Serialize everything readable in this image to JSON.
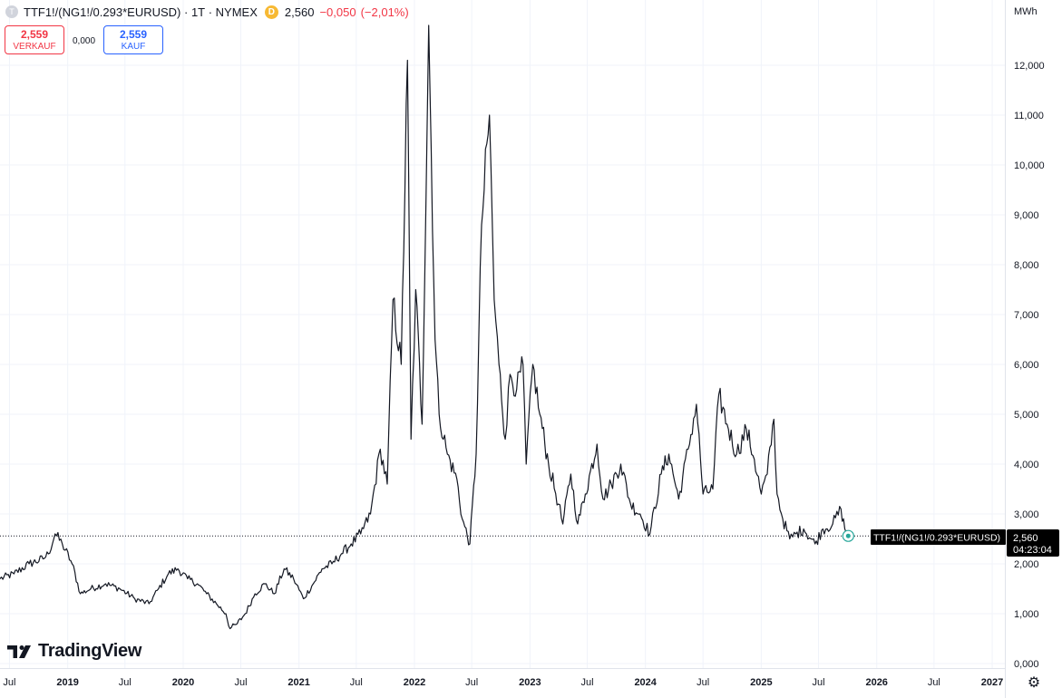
{
  "header": {
    "symbol": "TTF1!/(NG1!/0.293*EURUSD)",
    "interval": "1T",
    "exchange": "NYMEX",
    "delay_badge": "D",
    "last": "2,560",
    "change": "−0,050",
    "change_pct": "(−2,01%)",
    "change_color": "#f23645"
  },
  "trade": {
    "sell_price": "2,559",
    "sell_label": "VERKAUF",
    "buy_price": "2,559",
    "buy_label": "KAUF",
    "spread": "0,000"
  },
  "price_axis": {
    "unit": "MWh",
    "ticks": [
      "0,000",
      "1,000",
      "2,000",
      "3,000",
      "4,000",
      "5,000",
      "6,000",
      "7,000",
      "8,000",
      "9,000",
      "10,000",
      "11,000",
      "12,000"
    ]
  },
  "time_axis": {
    "ticks": [
      "Jul",
      "2019",
      "Jul",
      "2020",
      "Jul",
      "2021",
      "Jul",
      "2022",
      "Jul",
      "2023",
      "Jul",
      "2024",
      "Jul",
      "2025",
      "Jul",
      "2026",
      "Jul",
      "2027"
    ]
  },
  "last_price_label": {
    "symbol": "TTF1!/(NG1!/0.293*EURUSD)",
    "price": "2,560",
    "countdown": "04:23:04"
  },
  "branding": {
    "name": "TradingView"
  },
  "chart_data": {
    "type": "line",
    "title": "TTF1!/(NG1!/0.293*EURUSD)",
    "ylabel": "MWh",
    "ylim": [
      0,
      12.9
    ],
    "xlim": [
      "2018-06-01",
      "2027-02-10"
    ],
    "grid": true,
    "series": [
      {
        "name": "TTF1!/(NG1!/0.293*EURUSD)",
        "color": "#131722",
        "x": [
          "2018-06-01",
          "2018-07-15",
          "2018-09-01",
          "2018-10-15",
          "2018-11-01",
          "2018-11-22",
          "2018-12-15",
          "2019-01-15",
          "2019-02-10",
          "2019-03-15",
          "2019-05-01",
          "2019-06-15",
          "2019-08-01",
          "2019-09-15",
          "2019-10-15",
          "2019-11-15",
          "2019-12-15",
          "2020-01-15",
          "2020-02-15",
          "2020-03-15",
          "2020-04-15",
          "2020-05-15",
          "2020-05-28",
          "2020-06-20",
          "2020-07-15",
          "2020-08-15",
          "2020-09-15",
          "2020-10-15",
          "2020-11-15",
          "2020-12-15",
          "2021-01-15",
          "2021-02-15",
          "2021-03-15",
          "2021-04-15",
          "2021-05-15",
          "2021-06-15",
          "2021-07-15",
          "2021-08-15",
          "2021-09-15",
          "2021-10-07",
          "2021-10-25",
          "2021-11-20",
          "2021-12-10",
          "2021-12-21",
          "2022-01-05",
          "2022-01-25",
          "2022-02-15",
          "2022-03-07",
          "2022-03-20",
          "2022-04-15",
          "2022-05-15",
          "2022-06-01",
          "2022-06-25",
          "2022-07-15",
          "2022-08-01",
          "2022-08-26",
          "2022-09-10",
          "2022-09-25",
          "2022-10-15",
          "2022-10-30",
          "2022-11-20",
          "2022-12-10",
          "2022-12-20",
          "2023-01-10",
          "2023-02-01",
          "2023-03-01",
          "2023-04-01",
          "2023-04-15",
          "2023-05-10",
          "2023-06-01",
          "2023-06-25",
          "2023-08-01",
          "2023-08-20",
          "2023-09-15",
          "2023-10-15",
          "2023-11-15",
          "2023-12-15",
          "2024-01-15",
          "2024-02-20",
          "2024-03-15",
          "2024-04-15",
          "2024-05-15",
          "2024-06-10",
          "2024-07-01",
          "2024-08-01",
          "2024-08-20",
          "2024-09-15",
          "2024-10-15",
          "2024-11-15",
          "2024-12-10",
          "2025-01-01",
          "2025-01-20",
          "2025-02-10",
          "2025-02-20",
          "2025-03-10",
          "2025-04-01",
          "2025-04-20",
          "2025-05-15",
          "2025-06-20",
          "2025-07-15",
          "2025-08-15",
          "2025-09-10",
          "2025-09-22",
          "2025-10-03"
        ],
        "values": [
          1.7,
          1.8,
          2.0,
          2.1,
          2.2,
          2.6,
          2.4,
          2.0,
          1.4,
          1.5,
          1.6,
          1.5,
          1.3,
          1.2,
          1.5,
          1.8,
          1.9,
          1.7,
          1.6,
          1.4,
          1.2,
          1.0,
          0.7,
          0.8,
          1.0,
          1.4,
          1.6,
          1.4,
          1.9,
          1.7,
          1.3,
          1.6,
          1.9,
          2.0,
          2.2,
          2.4,
          2.6,
          3.0,
          4.3,
          3.6,
          7.3,
          6.0,
          12.1,
          4.5,
          7.5,
          4.8,
          12.8,
          6.5,
          5.0,
          4.2,
          3.7,
          2.9,
          2.4,
          4.2,
          8.8,
          11.0,
          7.3,
          6.0,
          4.5,
          5.8,
          5.5,
          6.0,
          4.0,
          6.0,
          5.0,
          4.0,
          3.2,
          2.8,
          3.8,
          2.8,
          3.4,
          4.4,
          3.3,
          3.6,
          4.0,
          3.2,
          3.0,
          2.6,
          3.8,
          4.2,
          3.3,
          4.3,
          5.2,
          3.4,
          3.5,
          5.4,
          4.8,
          4.2,
          4.7,
          4.1,
          3.4,
          3.8,
          4.9,
          3.4,
          2.9,
          2.5,
          2.6,
          2.7,
          2.4,
          2.7,
          2.8,
          3.1,
          2.7,
          2.56
        ]
      }
    ]
  }
}
